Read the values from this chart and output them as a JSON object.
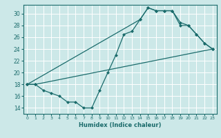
{
  "xlabel": "Humidex (Indice chaleur)",
  "bg_color": "#cce8e8",
  "grid_color": "#ffffff",
  "line_color": "#1a6b6b",
  "xlim": [
    -0.5,
    23.5
  ],
  "ylim": [
    13.0,
    31.5
  ],
  "xticks": [
    0,
    1,
    2,
    3,
    4,
    5,
    6,
    7,
    8,
    9,
    10,
    11,
    12,
    13,
    14,
    15,
    16,
    17,
    18,
    19,
    20,
    21,
    22,
    23
  ],
  "yticks": [
    14,
    16,
    18,
    20,
    22,
    24,
    26,
    28,
    30
  ],
  "line1_x": [
    0,
    1,
    2,
    3,
    4,
    5,
    6,
    7,
    8,
    9,
    10,
    11,
    12,
    13,
    14,
    15,
    16,
    17,
    18,
    19,
    20,
    21,
    22,
    23
  ],
  "line1_y": [
    18,
    18,
    17,
    16.5,
    16,
    15,
    15,
    14,
    14,
    17,
    20,
    23,
    26.5,
    27,
    29,
    31,
    30.5,
    30.5,
    30.5,
    28,
    28,
    26.5,
    25,
    24
  ],
  "line2_x": [
    0,
    1,
    23
  ],
  "line2_y": [
    18,
    18,
    24
  ],
  "line3_x": [
    0,
    14,
    15,
    16,
    17,
    18,
    19,
    20,
    21,
    22,
    23
  ],
  "line3_y": [
    18,
    29,
    31,
    30.5,
    30.5,
    30.5,
    28.5,
    28,
    26.5,
    25,
    24
  ]
}
